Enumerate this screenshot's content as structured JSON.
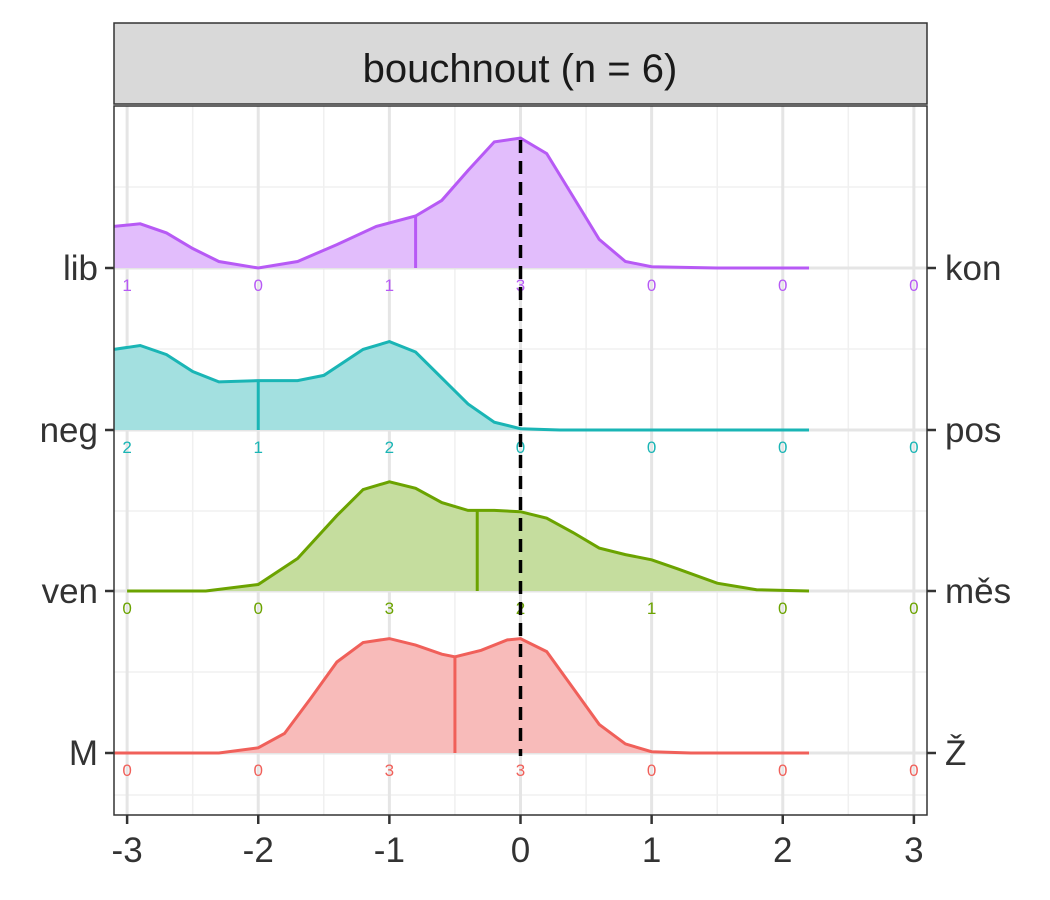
{
  "chart_data": {
    "type": "ridgeline-density",
    "panel_title": "bouchnout (n = 6)",
    "x_ticks": [
      "-3",
      "-2",
      "-1",
      "0",
      "1",
      "2",
      "3"
    ],
    "xlim": [
      -3.1,
      3.1
    ],
    "x_tick_values": [
      -3,
      -2,
      -1,
      0,
      1,
      2,
      3
    ],
    "count_positions": [
      -3,
      -2,
      -1,
      0,
      1,
      2,
      3
    ],
    "reference_line_x": 0,
    "grid": true,
    "rows": [
      {
        "left_label": "lib",
        "right_label": "kon",
        "color": "#B75AF5",
        "fill": "#E2BDFC",
        "median_x": -0.8,
        "counts": [
          "1",
          "0",
          "1",
          "3",
          "0",
          "0",
          "0"
        ],
        "density": [
          [
            -3.1,
            0.32
          ],
          [
            -2.9,
            0.34
          ],
          [
            -2.7,
            0.27
          ],
          [
            -2.5,
            0.15
          ],
          [
            -2.3,
            0.05
          ],
          [
            -2.0,
            0.0
          ],
          [
            -1.7,
            0.05
          ],
          [
            -1.4,
            0.18
          ],
          [
            -1.1,
            0.32
          ],
          [
            -0.8,
            0.4
          ],
          [
            -0.6,
            0.52
          ],
          [
            -0.4,
            0.75
          ],
          [
            -0.2,
            0.97
          ],
          [
            0.0,
            1.0
          ],
          [
            0.2,
            0.88
          ],
          [
            0.4,
            0.55
          ],
          [
            0.6,
            0.22
          ],
          [
            0.8,
            0.05
          ],
          [
            1.0,
            0.01
          ],
          [
            1.5,
            0.0
          ],
          [
            2.2,
            0.0
          ]
        ]
      },
      {
        "left_label": "neg",
        "right_label": "pos",
        "color": "#1AB5B5",
        "fill": "#A3E0E0",
        "median_x": -2.0,
        "counts": [
          "2",
          "1",
          "2",
          "0",
          "0",
          "0",
          "0"
        ],
        "density": [
          [
            -3.1,
            0.62
          ],
          [
            -2.9,
            0.65
          ],
          [
            -2.7,
            0.58
          ],
          [
            -2.5,
            0.45
          ],
          [
            -2.3,
            0.37
          ],
          [
            -2.0,
            0.38
          ],
          [
            -1.7,
            0.38
          ],
          [
            -1.5,
            0.42
          ],
          [
            -1.2,
            0.62
          ],
          [
            -1.0,
            0.68
          ],
          [
            -0.8,
            0.6
          ],
          [
            -0.6,
            0.4
          ],
          [
            -0.4,
            0.2
          ],
          [
            -0.2,
            0.06
          ],
          [
            0.0,
            0.01
          ],
          [
            0.3,
            0.0
          ],
          [
            2.2,
            0.0
          ]
        ]
      },
      {
        "left_label": "ven",
        "right_label": "měs",
        "color": "#6BA300",
        "fill": "#C5DD9E",
        "median_x": -0.33,
        "counts": [
          "0",
          "0",
          "3",
          "2",
          "1",
          "0",
          "0"
        ],
        "density": [
          [
            -3.0,
            0.0
          ],
          [
            -2.4,
            0.0
          ],
          [
            -2.0,
            0.05
          ],
          [
            -1.7,
            0.25
          ],
          [
            -1.4,
            0.58
          ],
          [
            -1.2,
            0.78
          ],
          [
            -1.0,
            0.84
          ],
          [
            -0.8,
            0.79
          ],
          [
            -0.6,
            0.68
          ],
          [
            -0.4,
            0.62
          ],
          [
            -0.2,
            0.62
          ],
          [
            0.0,
            0.61
          ],
          [
            0.2,
            0.56
          ],
          [
            0.4,
            0.45
          ],
          [
            0.6,
            0.33
          ],
          [
            0.8,
            0.28
          ],
          [
            1.0,
            0.24
          ],
          [
            1.2,
            0.17
          ],
          [
            1.5,
            0.06
          ],
          [
            1.8,
            0.01
          ],
          [
            2.2,
            0.0
          ]
        ]
      },
      {
        "left_label": "M",
        "right_label": "Ž",
        "color": "#F0605A",
        "fill": "#F8BBBA",
        "median_x": -0.5,
        "counts": [
          "0",
          "0",
          "3",
          "3",
          "0",
          "0",
          "0"
        ],
        "density": [
          [
            -3.1,
            0.0
          ],
          [
            -2.3,
            0.0
          ],
          [
            -2.0,
            0.04
          ],
          [
            -1.8,
            0.15
          ],
          [
            -1.6,
            0.42
          ],
          [
            -1.4,
            0.7
          ],
          [
            -1.2,
            0.85
          ],
          [
            -1.0,
            0.88
          ],
          [
            -0.8,
            0.83
          ],
          [
            -0.6,
            0.76
          ],
          [
            -0.5,
            0.74
          ],
          [
            -0.3,
            0.79
          ],
          [
            -0.1,
            0.87
          ],
          [
            0.0,
            0.88
          ],
          [
            0.2,
            0.78
          ],
          [
            0.4,
            0.5
          ],
          [
            0.6,
            0.22
          ],
          [
            0.8,
            0.07
          ],
          [
            1.0,
            0.01
          ],
          [
            1.3,
            0.0
          ],
          [
            2.2,
            0.0
          ]
        ]
      }
    ]
  }
}
